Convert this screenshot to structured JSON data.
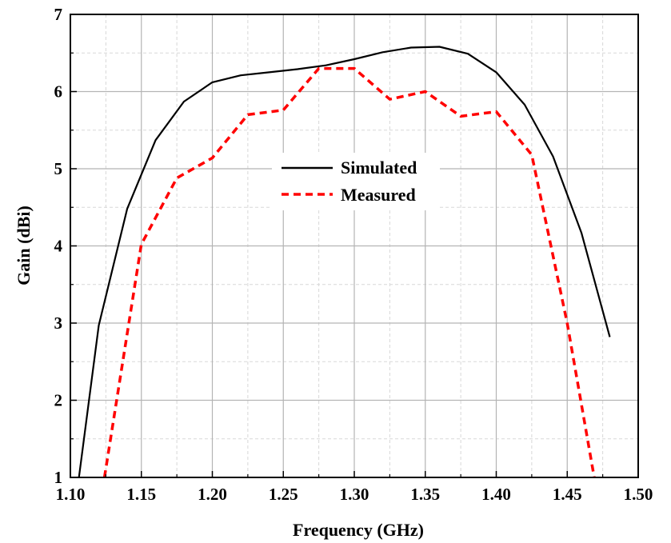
{
  "chart_data": {
    "type": "line",
    "xlabel": "Frequency (GHz)",
    "ylabel": "Gain (dBi)",
    "xlim": [
      1.1,
      1.5
    ],
    "ylim": [
      1,
      7
    ],
    "xticks": [
      "1.10",
      "1.15",
      "1.20",
      "1.25",
      "1.30",
      "1.35",
      "1.40",
      "1.45",
      "1.50"
    ],
    "yticks": [
      "1",
      "2",
      "3",
      "4",
      "5",
      "6",
      "7"
    ],
    "grid": true,
    "legend_position": "center",
    "series": [
      {
        "name": "Simulated",
        "color": "#000000",
        "style": "solid",
        "x": [
          1.106,
          1.12,
          1.14,
          1.16,
          1.18,
          1.2,
          1.22,
          1.24,
          1.26,
          1.28,
          1.3,
          1.32,
          1.34,
          1.36,
          1.38,
          1.4,
          1.42,
          1.44,
          1.46,
          1.48
        ],
        "y": [
          1.0,
          2.97,
          4.48,
          5.37,
          5.87,
          6.12,
          6.21,
          6.25,
          6.29,
          6.34,
          6.42,
          6.51,
          6.57,
          6.58,
          6.49,
          6.25,
          5.83,
          5.16,
          4.17,
          2.82
        ]
      },
      {
        "name": "Measured",
        "color": "#ff0000",
        "style": "dashed",
        "x": [
          1.124,
          1.15,
          1.175,
          1.2,
          1.225,
          1.25,
          1.275,
          1.3,
          1.325,
          1.35,
          1.375,
          1.4,
          1.425,
          1.45,
          1.469
        ],
        "y": [
          1.0,
          4.02,
          4.88,
          5.14,
          5.7,
          5.76,
          6.3,
          6.3,
          5.9,
          6.0,
          5.68,
          5.74,
          5.18,
          3.0,
          1.0
        ]
      }
    ]
  }
}
